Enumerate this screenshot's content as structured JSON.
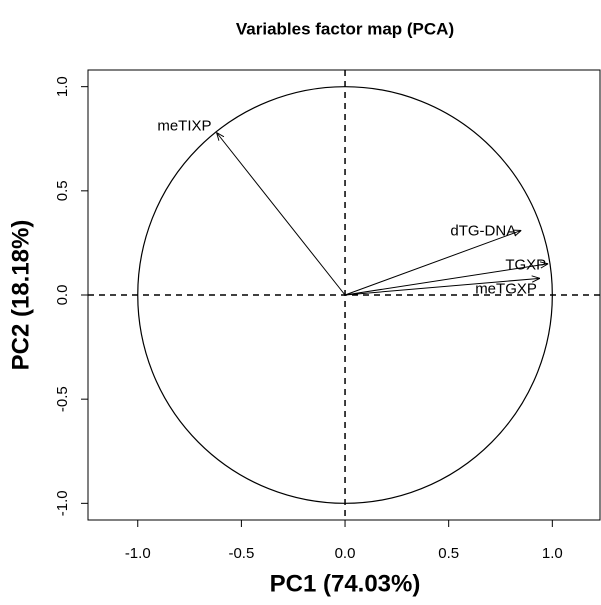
{
  "chart_data": {
    "type": "pca-variables",
    "title": "Variables factor map (PCA)",
    "x_label": "PC1 (74.03%)",
    "y_label": "PC2 (18.18%)",
    "xlim": [
      -1.24,
      1.23
    ],
    "ylim": [
      -1.08,
      1.08
    ],
    "xticks": [
      {
        "value": -1,
        "label": "-1.0"
      },
      -0.5,
      {
        "value": 0,
        "label": "0.0"
      },
      0.5,
      {
        "value": 1,
        "label": "1.0"
      }
    ],
    "yticks": [
      {
        "value": -1,
        "label": "-1.0"
      },
      -0.5,
      {
        "value": 0,
        "label": "0.0"
      },
      0.5,
      {
        "value": 1,
        "label": "1.0"
      }
    ],
    "color": "#000000",
    "series": [
      {
        "name": "meTIXP",
        "x": -0.62,
        "y": 0.78
      },
      {
        "name": "dTG-DNA",
        "x": 0.85,
        "y": 0.31
      },
      {
        "name": "TGXP",
        "x": 0.98,
        "y": 0.15
      },
      {
        "name": "meTGXP",
        "x": 0.94,
        "y": 0.08
      }
    ]
  }
}
